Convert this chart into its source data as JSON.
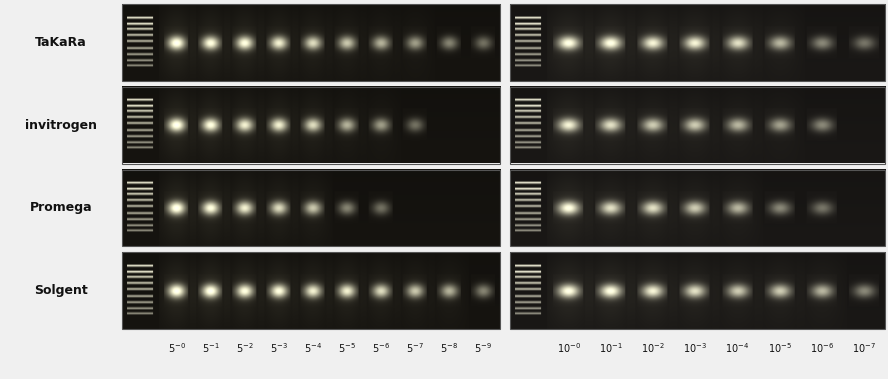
{
  "figure_width": 8.88,
  "figure_height": 3.79,
  "dpi": 100,
  "bg_color": "#f0f0f0",
  "row_labels": [
    "TaKaRa",
    "invitrogen",
    "Promega",
    "Solgent"
  ],
  "left_exponents": [
    "-0",
    "-1",
    "-2",
    "-3",
    "-4",
    "-5",
    "-6",
    "-7",
    "-8",
    "-9"
  ],
  "right_exponents": [
    "-0",
    "-1",
    "-2",
    "-3",
    "-4",
    "-5",
    "-6",
    "-7"
  ],
  "left_bands": [
    [
      9,
      8,
      8,
      7,
      6,
      5,
      4,
      3,
      2,
      1
    ],
    [
      9,
      8,
      7,
      7,
      6,
      4,
      3,
      1,
      0,
      0
    ],
    [
      9,
      8,
      7,
      6,
      5,
      2,
      1,
      0,
      0,
      0
    ],
    [
      9,
      9,
      8,
      8,
      7,
      7,
      6,
      5,
      4,
      2
    ]
  ],
  "right_bands": [
    [
      8,
      8,
      7,
      7,
      6,
      4,
      2,
      1
    ],
    [
      7,
      6,
      5,
      5,
      4,
      3,
      2,
      0
    ],
    [
      8,
      6,
      6,
      5,
      4,
      2,
      1,
      0
    ],
    [
      8,
      8,
      7,
      6,
      5,
      5,
      4,
      2
    ]
  ],
  "left_gel_bg": "#161410",
  "right_gel_bg": "#1a1816",
  "font_size_row_labels": 9,
  "font_size_xlabels": 7
}
